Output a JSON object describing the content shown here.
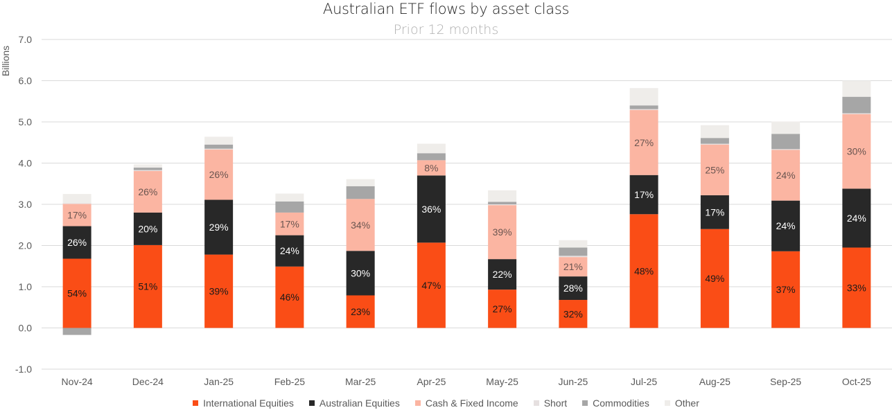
{
  "chart_data": {
    "type": "bar",
    "stacked": true,
    "title": "Australian ETF flows by asset class",
    "subtitle": "Prior 12 months",
    "xlabel": "",
    "ylabel": "Billions",
    "ylim": [
      -1.0,
      7.0
    ],
    "yticks": [
      -1.0,
      0.0,
      1.0,
      2.0,
      3.0,
      4.0,
      5.0,
      6.0,
      7.0
    ],
    "ytick_labels": [
      "-1.0",
      "0.0",
      "1.0",
      "2.0",
      "3.0",
      "4.0",
      "5.0",
      "6.0",
      "7.0"
    ],
    "grid": true,
    "legend_position": "bottom",
    "categories": [
      "Nov-24",
      "Dec-24",
      "Jan-25",
      "Feb-25",
      "Mar-25",
      "Apr-25",
      "May-25",
      "Jun-25",
      "Jul-25",
      "Aug-25",
      "Sep-25",
      "Oct-25"
    ],
    "series": [
      {
        "name": "International Equities",
        "color": "#fa4d16",
        "label_color": "#1a1a1a",
        "values": [
          1.68,
          2.01,
          1.78,
          1.49,
          0.79,
          2.07,
          0.93,
          0.68,
          2.76,
          2.4,
          1.86,
          1.95
        ],
        "labels": [
          "54%",
          "51%",
          "39%",
          "46%",
          "23%",
          "47%",
          "27%",
          "32%",
          "48%",
          "49%",
          "37%",
          "33%"
        ]
      },
      {
        "name": "Australian Equities",
        "color": "#282828",
        "label_color": "#ffffff",
        "values": [
          0.79,
          0.79,
          1.33,
          0.76,
          1.08,
          1.63,
          0.74,
          0.57,
          0.95,
          0.82,
          1.23,
          1.43
        ],
        "labels": [
          "26%",
          "20%",
          "29%",
          "24%",
          "30%",
          "36%",
          "22%",
          "28%",
          "17%",
          "17%",
          "24%",
          "24%"
        ]
      },
      {
        "name": "Cash & Fixed Income",
        "color": "#fbb5a2",
        "label_color": "#6a5550",
        "values": [
          0.54,
          1.01,
          1.22,
          0.55,
          1.26,
          0.37,
          1.31,
          0.47,
          1.58,
          1.23,
          1.23,
          1.81
        ],
        "labels": [
          "17%",
          "26%",
          "26%",
          "17%",
          "34%",
          "8%",
          "39%",
          "21%",
          "27%",
          "25%",
          "24%",
          "30%"
        ]
      },
      {
        "name": "Short",
        "color": "#e6e0e0",
        "values": [
          0.02,
          0.02,
          0.02,
          0.0,
          0.0,
          0.0,
          0.02,
          0.03,
          0.02,
          0.02,
          0.02,
          0.02
        ]
      },
      {
        "name": "Commodities",
        "color": "#a6a6a6",
        "values": [
          -0.17,
          0.06,
          0.1,
          0.27,
          0.31,
          0.17,
          0.06,
          0.2,
          0.09,
          0.14,
          0.37,
          0.4
        ]
      },
      {
        "name": "Other",
        "color": "#efedea",
        "values": [
          0.22,
          0.08,
          0.19,
          0.19,
          0.17,
          0.23,
          0.28,
          0.18,
          0.42,
          0.31,
          0.3,
          0.39
        ]
      }
    ]
  }
}
